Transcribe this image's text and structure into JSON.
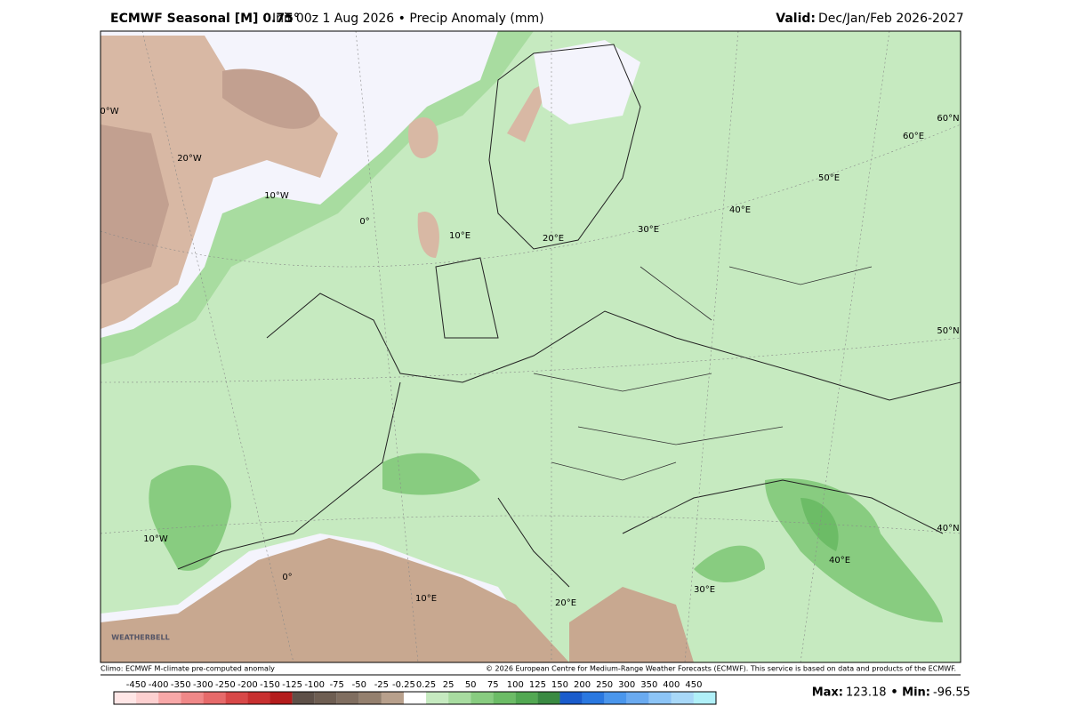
{
  "header": {
    "title_bold": "ECMWF Seasonal [M] 0.75°",
    "title_rest": "Init 00z 1 Aug 2026 • Precip Anomaly (mm)",
    "valid_label": "Valid:",
    "valid_value": "Dec/Jan/Feb 2026-2027"
  },
  "map": {
    "grid_labels": [
      "0°W",
      "20°W",
      "10°W",
      "0°",
      "10°E",
      "20°E",
      "30°E",
      "40°E",
      "50°E",
      "60°E",
      "60°N",
      "50°N",
      "40°N",
      "10°W",
      "0°",
      "10°E",
      "20°E",
      "30°E",
      "40°E"
    ],
    "logo": "WEATHERBELL"
  },
  "footer": {
    "climo": "Climo: ECMWF M-climate pre-computed anomaly",
    "copyright": "© 2026 European Centre for Medium-Range Weather Forecasts (ECMWF). This service is based on data and products of the ECMWF."
  },
  "colorbar": {
    "ticks": [
      -450,
      -400,
      -350,
      -300,
      -250,
      -200,
      -150,
      -125,
      -100,
      -75,
      -50,
      -25,
      -0.25,
      0.25,
      25,
      50,
      75,
      100,
      125,
      150,
      200,
      250,
      300,
      350,
      400,
      450
    ],
    "colors": [
      "#ffe6e6",
      "#fdd0d0",
      "#f8a8a8",
      "#f08888",
      "#e66a6a",
      "#d84848",
      "#c83030",
      "#b41c1c",
      "#5e5048",
      "#6e5e52",
      "#806e60",
      "#94806e",
      "#b8a08c",
      "#ffffff",
      "#c6eac0",
      "#a8dca0",
      "#88cc80",
      "#6cbc66",
      "#52a852",
      "#3a8a42",
      "#1a5ccc",
      "#2a78e0",
      "#4a96ec",
      "#6aaaf0",
      "#8cc4f6",
      "#a8d8f8",
      "#b0f0f8"
    ]
  },
  "stats": {
    "max_label": "Max:",
    "max_value": 123.18,
    "min_label": "• Min:",
    "min_value": -96.55
  }
}
